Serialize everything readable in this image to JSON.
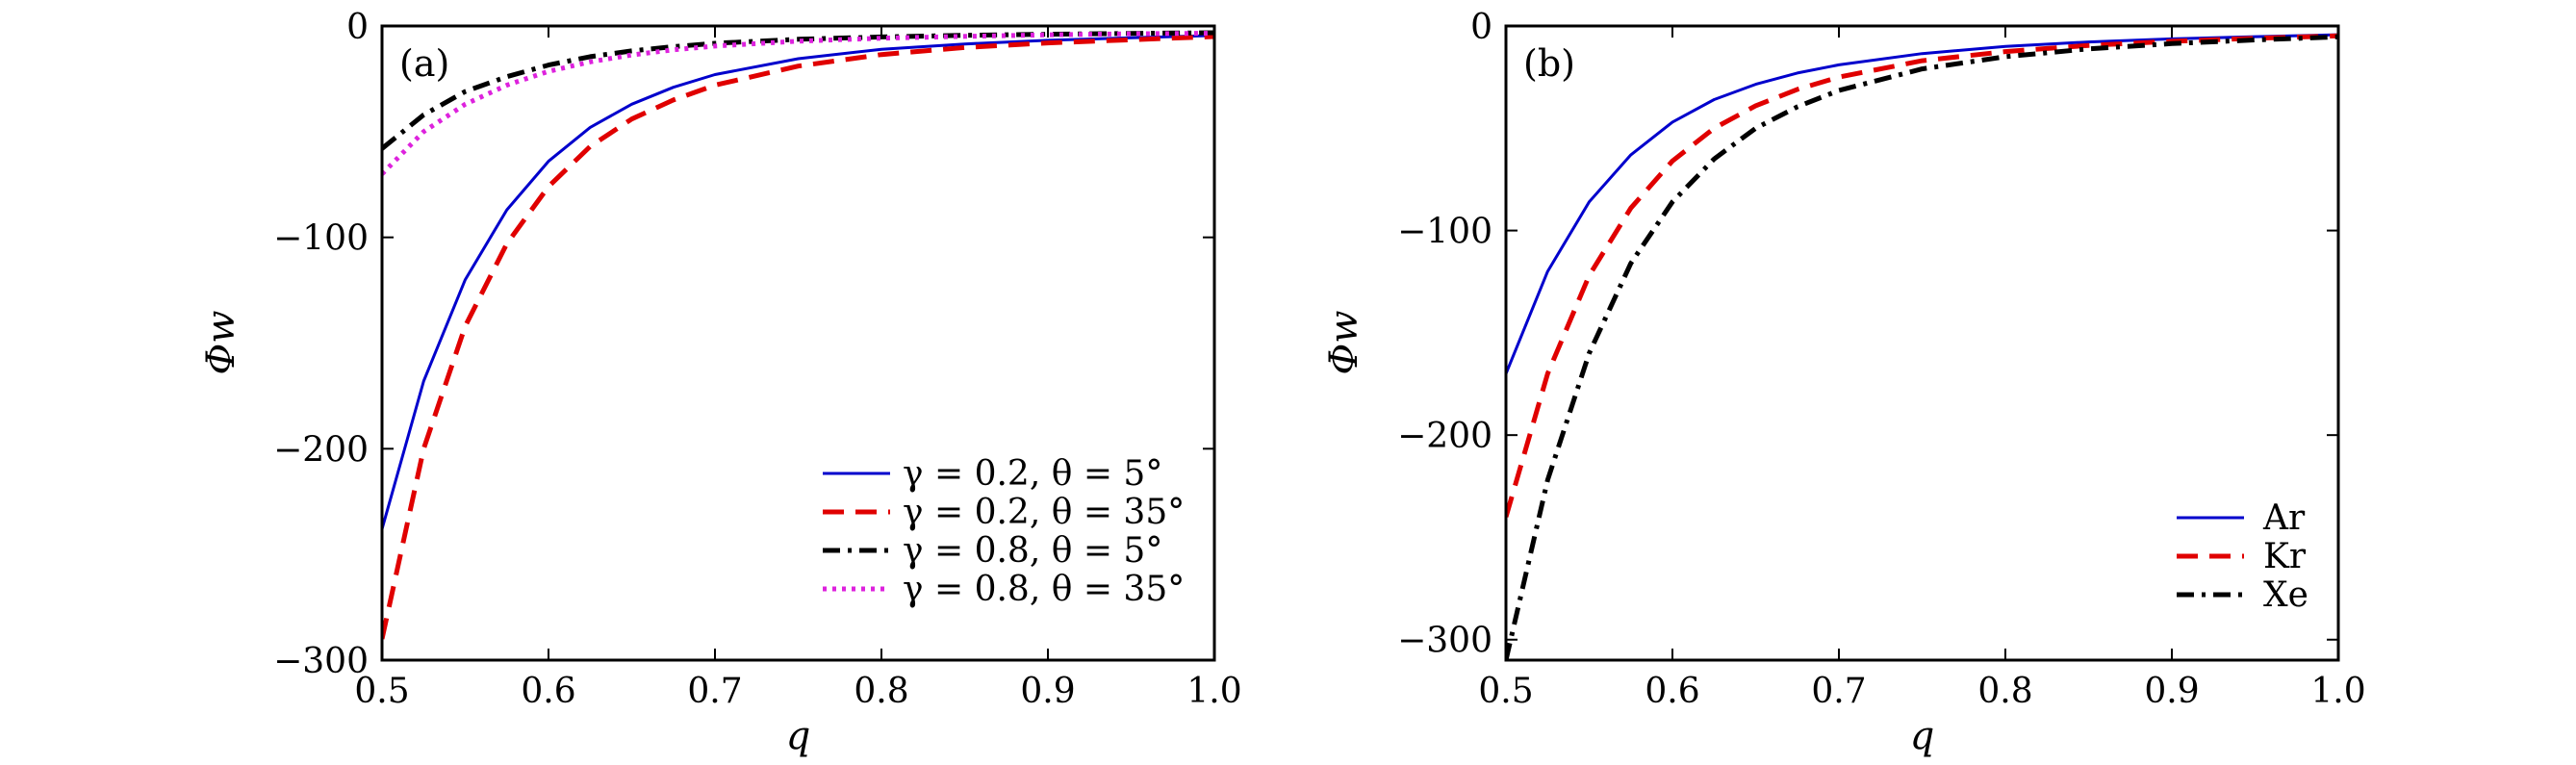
{
  "chart_data": [
    {
      "type": "line",
      "panel_label": "(a)",
      "xlabel": "q",
      "ylabel": "Φw",
      "xlim": [
        0.5,
        1.0
      ],
      "ylim": [
        -300,
        0
      ],
      "x_ticks": [
        "0.5",
        "0.6",
        "0.7",
        "0.8",
        "0.9",
        "1.0"
      ],
      "y_ticks": [
        "0",
        "−100",
        "−200",
        "−300"
      ],
      "legend_position": "lower-right",
      "x": [
        0.5,
        0.525,
        0.55,
        0.575,
        0.6,
        0.625,
        0.65,
        0.675,
        0.7,
        0.75,
        0.8,
        0.85,
        0.9,
        0.95,
        1.0
      ],
      "series": [
        {
          "name": "γ = 0.2,  θ = 5°",
          "color": "#0000cc",
          "dash": "solid",
          "values": [
            -238,
            -168,
            -120,
            -87,
            -64,
            -48,
            -37,
            -29,
            -23,
            -15.5,
            -11,
            -8.5,
            -6.8,
            -5.6,
            -4.5
          ]
        },
        {
          "name": "γ = 0.2,  θ = 35°",
          "color": "#e00000",
          "dash": "dashed",
          "values": [
            -290,
            -200,
            -142,
            -103,
            -76,
            -57,
            -44,
            -35,
            -28,
            -19,
            -13.5,
            -10.2,
            -8,
            -6.5,
            -5
          ]
        },
        {
          "name": "γ = 0.8,  θ = 5°",
          "color": "#000000",
          "dash": "dashdot",
          "values": [
            -58,
            -42,
            -31,
            -24,
            -18.5,
            -14.5,
            -11.8,
            -9.8,
            -8.2,
            -6.3,
            -5.2,
            -4.4,
            -3.9,
            -3.5,
            -3.2
          ]
        },
        {
          "name": "γ = 0.8,  θ = 35°",
          "color": "#dd22dd",
          "dash": "dotted",
          "values": [
            -70,
            -50,
            -37,
            -28,
            -21.5,
            -17,
            -13.7,
            -11.3,
            -9.5,
            -7.2,
            -5.8,
            -4.9,
            -4.2,
            -3.7,
            -3.4
          ]
        }
      ]
    },
    {
      "type": "line",
      "panel_label": "(b)",
      "xlabel": "q",
      "ylabel": "Φw",
      "xlim": [
        0.5,
        1.0
      ],
      "ylim": [
        -310,
        0
      ],
      "x_ticks": [
        "0.5",
        "0.6",
        "0.7",
        "0.8",
        "0.9",
        "1.0"
      ],
      "y_ticks": [
        "0",
        "−100",
        "−200",
        "−300"
      ],
      "legend_position": "lower-right",
      "x": [
        0.5,
        0.525,
        0.55,
        0.575,
        0.6,
        0.625,
        0.65,
        0.675,
        0.7,
        0.75,
        0.8,
        0.85,
        0.9,
        0.95,
        1.0
      ],
      "series": [
        {
          "name": "Ar",
          "color": "#0000cc",
          "dash": "solid",
          "values": [
            -170,
            -120,
            -86,
            -63,
            -47,
            -36,
            -28.5,
            -23,
            -19,
            -13.5,
            -10,
            -7.8,
            -6.3,
            -5.2,
            -4.3
          ]
        },
        {
          "name": "Kr",
          "color": "#e00000",
          "dash": "dashed",
          "values": [
            -240,
            -170,
            -122,
            -89,
            -66,
            -50,
            -39,
            -31,
            -25,
            -17,
            -12.5,
            -9.5,
            -7.5,
            -6,
            -4.8
          ]
        },
        {
          "name": "Xe",
          "color": "#000000",
          "dash": "dashdot",
          "values": [
            -310,
            -222,
            -160,
            -116,
            -86,
            -65,
            -50,
            -39.5,
            -31.5,
            -21,
            -15,
            -11.2,
            -8.6,
            -6.8,
            -5.3
          ]
        }
      ]
    }
  ]
}
